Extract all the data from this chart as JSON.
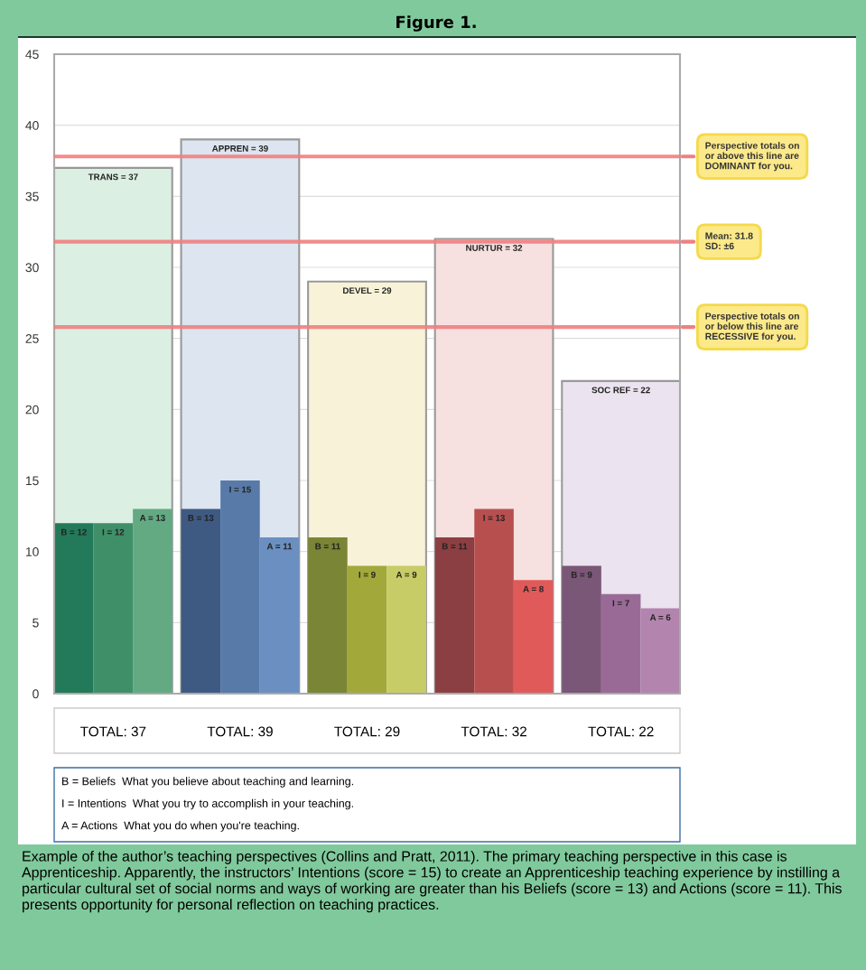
{
  "chart_data": {
    "type": "bar",
    "title": "Figure 1.",
    "categories": [
      "TOTAL: 37",
      "TOTAL: 39",
      "TOTAL: 29",
      "TOTAL: 32",
      "TOTAL: 22"
    ],
    "series": [
      {
        "values": [
          37,
          39,
          29,
          32,
          22
        ],
        "colors": [
          "#dcefe3",
          "#dde5f0",
          "#f8f3d8",
          "#f6e0e0",
          "#ebe3ef"
        ],
        "value_labels": [
          "TRANS = 37",
          "APPREN = 39",
          "DEVEL = 29",
          "NURTUR = 32",
          "SOC REF = 22"
        ]
      },
      {
        "values": [
          12,
          13,
          11,
          11,
          9
        ],
        "colors": [
          "#237a5a",
          "#3f5a82",
          "#7a8535",
          "#8c3f42",
          "#7a5677"
        ],
        "value_labels": [
          "B = 12",
          "B = 13",
          "B = 11",
          "B = 11",
          "B = 9"
        ]
      },
      {
        "values": [
          12,
          15,
          9,
          13,
          7
        ],
        "colors": [
          "#3f8f68",
          "#587aa8",
          "#a3a83a",
          "#b84f4f",
          "#9a6a96"
        ],
        "value_labels": [
          "I = 12",
          "I = 15",
          "I = 9",
          "I = 13",
          "I = 7"
        ]
      },
      {
        "values": [
          13,
          11,
          9,
          8,
          6
        ],
        "colors": [
          "#63aa83",
          "#6b8fc0",
          "#c8cc66",
          "#e05a5a",
          "#b384ad"
        ],
        "value_labels": [
          "A = 13",
          "A = 11",
          "A = 9",
          "A = 8",
          "A = 6"
        ]
      }
    ],
    "ylim": [
      0,
      45
    ],
    "yticks": [
      0,
      5,
      10,
      15,
      20,
      25,
      30,
      35,
      40,
      45
    ],
    "grid": "y",
    "ref_lines": [
      {
        "axis": "y",
        "value": 37.8,
        "color": "#f08080",
        "label": "Perspective totals on\nor above this line are\nDOMINANT for you."
      },
      {
        "axis": "y",
        "value": 31.8,
        "color": "#f08080",
        "label": "Mean: 31.8\nSD: ±6"
      },
      {
        "axis": "y",
        "value": 25.8,
        "color": "#f08080",
        "label": "Perspective totals on\nor below this line are\nRECESSIVE for you."
      }
    ],
    "annotations": [
      "B = Beliefs  What you believe about teaching and learning.",
      "I = Intentions  What you try to accomplish in your teaching.",
      "A = Actions  What you do when you're teaching.",
      "Example of the author’s teaching perspectives (Collins and Pratt, 2011). The primary teaching perspective in this case is Apprenticeship. Apparently, the instructors’ Intentions (score = 15) to create an Apprenticeship teaching experience by instilling a particular cultural set of social norms and ways of working are greater than his Beliefs (score = 13) and Actions (score = 11). This presents opportunity for personal reflection on teaching practices."
    ]
  }
}
